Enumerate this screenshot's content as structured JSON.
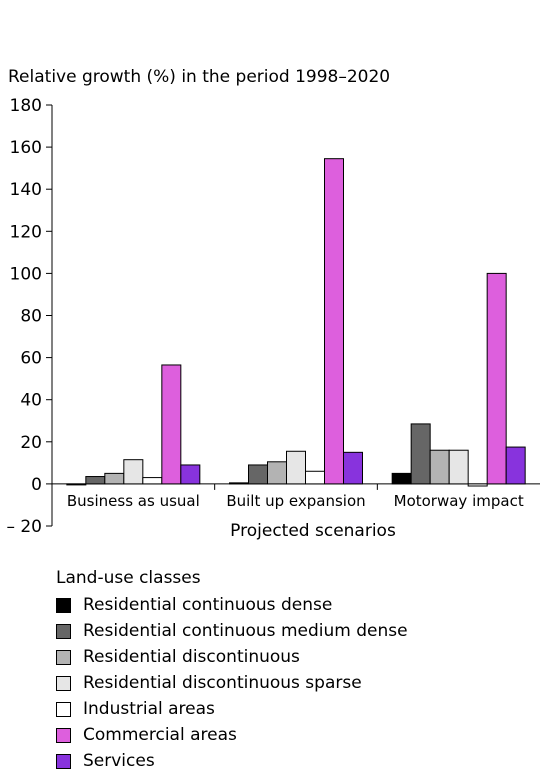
{
  "chart_data": {
    "type": "bar",
    "title": "Relative growth (%) in the period 1998–2020",
    "xlabel": "Projected scenarios",
    "ylabel": "",
    "ylim": [
      -20,
      180
    ],
    "yticks": [
      -20,
      0,
      20,
      40,
      60,
      80,
      100,
      120,
      140,
      160,
      180
    ],
    "ytick_labels": [
      "– 20",
      "0",
      "20",
      "40",
      "60",
      "80",
      "100",
      "120",
      "140",
      "160",
      "180"
    ],
    "grid": false,
    "legend_position": "bottom",
    "categories": [
      "Business as usual",
      "Built up expansion",
      "Motorway impact"
    ],
    "series": [
      {
        "name": "Residential continuous dense",
        "color": "#000000",
        "values": [
          0,
          0.5,
          5
        ]
      },
      {
        "name": "Residential continuous medium dense",
        "color": "#666666",
        "values": [
          3.5,
          9,
          28.5
        ]
      },
      {
        "name": "Residential discontinuous",
        "color": "#b3b3b3",
        "values": [
          5,
          10.5,
          16
        ]
      },
      {
        "name": "Residential discontinuous sparse",
        "color": "#e6e6e6",
        "values": [
          11.5,
          15.5,
          16
        ]
      },
      {
        "name": "Industrial areas",
        "color": "#ffffff",
        "values": [
          3,
          6,
          -1
        ]
      },
      {
        "name": "Commercial areas",
        "color": "#dd5fdd",
        "values": [
          56.5,
          154.5,
          100
        ]
      },
      {
        "name": "Services",
        "color": "#8833dd",
        "values": [
          9,
          15,
          17.5
        ]
      }
    ]
  },
  "legend": {
    "title": "Land-use classes"
  }
}
